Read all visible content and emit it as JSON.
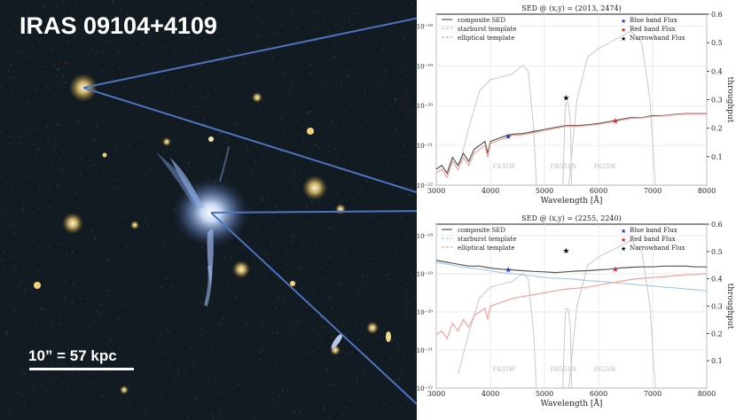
{
  "image_title": "IRAS 09104+4109",
  "scale_bar_label": "10” = 57 kpc",
  "chart_data": [
    {
      "type": "line",
      "title": "SED @ (x,y) = (2013, 2474)",
      "xlabel": "Wavelength [Å]",
      "ylabel": "photlam",
      "y2label": "throughput",
      "xlim": [
        3000,
        8000
      ],
      "ylim_log10": [
        -22,
        -17.7
      ],
      "y2lim": [
        0,
        0.6
      ],
      "xticks": [
        "3000",
        "4000",
        "5000",
        "6000",
        "7000",
        "8000"
      ],
      "yticks": [
        "10⁻²²",
        "10⁻²¹",
        "10⁻²⁰",
        "10⁻¹⁹",
        "10⁻¹⁸"
      ],
      "y2ticks": [
        "0.1",
        "0.2",
        "0.3",
        "0.4",
        "0.5",
        "0.6"
      ],
      "legend_left": [
        "composite SED",
        "starburst template",
        "elliptical template"
      ],
      "legend_right": [
        "Blue band Flux",
        "Red band Flux",
        "Narrowband Flux"
      ],
      "filters": [
        "F435W",
        "FR551N",
        "F625W"
      ],
      "series": [
        {
          "name": "composite SED",
          "color": "#555555",
          "x": [
            3000,
            3100,
            3200,
            3300,
            3400,
            3500,
            3600,
            3700,
            3800,
            3900,
            3950,
            4000,
            4100,
            4200,
            4300,
            4400,
            4600,
            4800,
            5000,
            5200,
            5400,
            5600,
            5800,
            6000,
            6200,
            6400,
            6600,
            6800,
            7000,
            7200,
            7400,
            7600,
            7800,
            8000
          ],
          "y": [
            -21.6,
            -21.5,
            -21.7,
            -21.3,
            -21.5,
            -21.2,
            -21.4,
            -21.1,
            -21.0,
            -20.9,
            -21.2,
            -20.9,
            -20.85,
            -20.8,
            -20.75,
            -20.72,
            -20.7,
            -20.65,
            -20.6,
            -20.55,
            -20.5,
            -20.5,
            -20.48,
            -20.45,
            -20.4,
            -20.35,
            -20.3,
            -20.3,
            -20.25,
            -20.25,
            -20.22,
            -20.2,
            -20.2,
            -20.2
          ]
        },
        {
          "name": "elliptical template",
          "color": "#f3a39b",
          "x": [
            3000,
            3100,
            3200,
            3300,
            3400,
            3500,
            3600,
            3700,
            3800,
            3900,
            3950,
            4000,
            4100,
            4200,
            4300,
            4400,
            4600,
            4800,
            5000,
            5200,
            5400,
            5600,
            5800,
            6000,
            6200,
            6400,
            6600,
            6800,
            7000,
            7200,
            7400,
            7600,
            7800,
            8000
          ],
          "y": [
            -21.7,
            -21.6,
            -21.8,
            -21.4,
            -21.6,
            -21.3,
            -21.5,
            -21.2,
            -21.1,
            -21.0,
            -21.3,
            -20.95,
            -20.9,
            -20.85,
            -20.8,
            -20.75,
            -20.73,
            -20.68,
            -20.62,
            -20.57,
            -20.52,
            -20.52,
            -20.5,
            -20.47,
            -20.42,
            -20.37,
            -20.32,
            -20.31,
            -20.27,
            -20.26,
            -20.23,
            -20.21,
            -20.21,
            -20.21
          ]
        }
      ],
      "throughput": [
        {
          "name": "F435W",
          "x": [
            3400,
            3600,
            3800,
            4000,
            4200,
            4400,
            4600,
            4700,
            4800,
            4850
          ],
          "y": [
            0.05,
            0.2,
            0.33,
            0.37,
            0.38,
            0.39,
            0.42,
            0.4,
            0.2,
            0.0
          ]
        },
        {
          "name": "FR551N",
          "x": [
            5340,
            5380,
            5400,
            5440,
            5480,
            5500
          ],
          "y": [
            0.0,
            0.25,
            0.29,
            0.29,
            0.22,
            0.0
          ]
        },
        {
          "name": "F625W",
          "x": [
            5450,
            5600,
            5800,
            6000,
            6200,
            6400,
            6600,
            6800,
            6950,
            7050
          ],
          "y": [
            0.0,
            0.3,
            0.45,
            0.48,
            0.5,
            0.52,
            0.54,
            0.5,
            0.3,
            0.0
          ]
        }
      ],
      "points": [
        {
          "name": "Blue band Flux",
          "x": 4330,
          "y": -20.78,
          "color": "#1f2fd0"
        },
        {
          "name": "Red band Flux",
          "x": 6310,
          "y": -20.38,
          "color": "#e0201c"
        },
        {
          "name": "Narrowband Flux",
          "x": 5400,
          "y": -19.8,
          "color": "#000000"
        }
      ]
    },
    {
      "type": "line",
      "title": "SED @ (x,y) = (2255, 2240)",
      "xlabel": "Wavelength [Å]",
      "ylabel": "photlam",
      "y2label": "throughput",
      "xlim": [
        3000,
        8000
      ],
      "ylim_log10": [
        -22,
        -17.7
      ],
      "y2lim": [
        0,
        0.6
      ],
      "xticks": [
        "3000",
        "4000",
        "5000",
        "6000",
        "7000",
        "8000"
      ],
      "yticks": [
        "10⁻²²",
        "10⁻²¹",
        "10⁻²⁰",
        "10⁻¹⁹",
        "10⁻¹⁸"
      ],
      "y2ticks": [
        "0.1",
        "0.2",
        "0.3",
        "0.4",
        "0.5",
        "0.6"
      ],
      "legend_left": [
        "composite SED",
        "starburst template",
        "elliptical template"
      ],
      "legend_right": [
        "Blue band Flux",
        "Red band Flux",
        "Narrowband Flux"
      ],
      "filters": [
        "F435W",
        "FR551N",
        "F625W"
      ],
      "series": [
        {
          "name": "composite SED",
          "color": "#555555",
          "x": [
            3000,
            3200,
            3400,
            3600,
            3800,
            4000,
            4200,
            4400,
            4600,
            4800,
            5000,
            5200,
            5400,
            5600,
            5800,
            6000,
            6200,
            6400,
            6600,
            6800,
            7000,
            7200,
            7400,
            7600,
            7800,
            8000
          ],
          "y": [
            -18.65,
            -18.7,
            -18.75,
            -18.8,
            -18.8,
            -18.85,
            -18.88,
            -18.9,
            -18.92,
            -18.94,
            -18.95,
            -18.97,
            -18.95,
            -18.93,
            -18.92,
            -18.9,
            -18.88,
            -18.85,
            -18.83,
            -18.82,
            -18.82,
            -18.8,
            -18.8,
            -18.8,
            -18.82,
            -18.82
          ]
        },
        {
          "name": "starburst template",
          "color": "#a9cbeb",
          "x": [
            3000,
            3200,
            3400,
            3600,
            3800,
            4000,
            4200,
            4400,
            4600,
            4800,
            5000,
            5200,
            5400,
            5600,
            5800,
            6000,
            6200,
            6400,
            6600,
            6800,
            7000,
            7200,
            7400,
            7600,
            7800,
            8000
          ],
          "y": [
            -18.7,
            -18.75,
            -18.8,
            -18.85,
            -18.88,
            -18.92,
            -18.97,
            -19.0,
            -19.03,
            -19.06,
            -19.1,
            -19.12,
            -19.13,
            -19.15,
            -19.18,
            -19.2,
            -19.22,
            -19.25,
            -19.27,
            -19.3,
            -19.32,
            -19.35,
            -19.37,
            -19.4,
            -19.42,
            -19.45
          ]
        },
        {
          "name": "elliptical template",
          "color": "#f3a39b",
          "x": [
            3000,
            3100,
            3200,
            3300,
            3400,
            3500,
            3600,
            3700,
            3800,
            3900,
            3950,
            4000,
            4100,
            4200,
            4300,
            4400,
            4600,
            4800,
            5000,
            5200,
            5400,
            5600,
            5800,
            6000,
            6200,
            6400,
            6600,
            6800,
            7000,
            7200,
            7400,
            7600,
            7800,
            8000
          ],
          "y": [
            -20.6,
            -20.5,
            -20.7,
            -20.3,
            -20.5,
            -20.2,
            -20.4,
            -20.1,
            -20.0,
            -19.9,
            -20.2,
            -19.85,
            -19.8,
            -19.75,
            -19.7,
            -19.65,
            -19.6,
            -19.55,
            -19.5,
            -19.45,
            -19.4,
            -19.38,
            -19.35,
            -19.3,
            -19.25,
            -19.2,
            -19.15,
            -19.12,
            -19.1,
            -19.08,
            -19.05,
            -19.03,
            -19.02,
            -19.0
          ]
        }
      ],
      "throughput": [
        {
          "name": "F435W",
          "x": [
            3400,
            3600,
            3800,
            4000,
            4200,
            4400,
            4600,
            4700,
            4800,
            4850
          ],
          "y": [
            0.05,
            0.2,
            0.33,
            0.37,
            0.38,
            0.39,
            0.42,
            0.4,
            0.2,
            0.0
          ]
        },
        {
          "name": "FR551N",
          "x": [
            5340,
            5380,
            5400,
            5440,
            5480,
            5500
          ],
          "y": [
            0.0,
            0.25,
            0.29,
            0.29,
            0.22,
            0.0
          ]
        },
        {
          "name": "F625W",
          "x": [
            5450,
            5600,
            5800,
            6000,
            6200,
            6400,
            6600,
            6800,
            6950,
            7050
          ],
          "y": [
            0.0,
            0.3,
            0.45,
            0.48,
            0.5,
            0.52,
            0.54,
            0.5,
            0.3,
            0.0
          ]
        }
      ],
      "points": [
        {
          "name": "Blue band Flux",
          "x": 4330,
          "y": -18.9,
          "color": "#1f2fd0"
        },
        {
          "name": "Red band Flux",
          "x": 6310,
          "y": -18.88,
          "color": "#e0201c"
        },
        {
          "name": "Narrowband Flux",
          "x": 5400,
          "y": -18.4,
          "color": "#000000"
        }
      ]
    }
  ]
}
